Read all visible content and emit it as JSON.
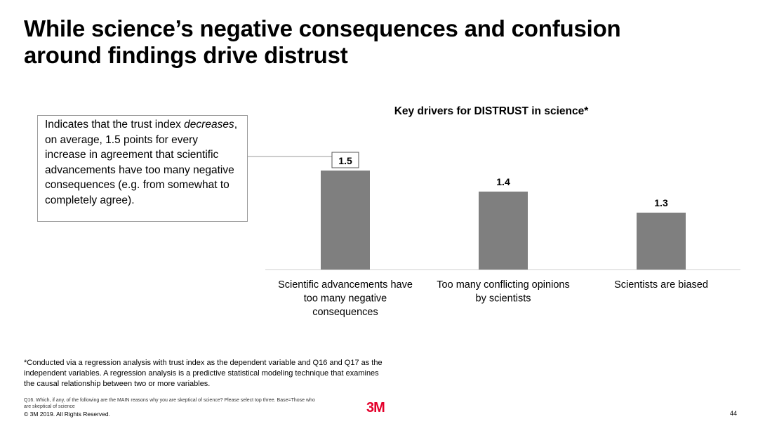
{
  "slide": {
    "title_line1": "While science’s negative consequences and confusion",
    "title_line2": "around findings drive distrust",
    "callout": {
      "before": "Indicates that the trust index ",
      "emphasis": "decreases",
      "after": ", on average, 1.5 points for every increase in agreement that scientific advancements have too many negative consequences (e.g. from somewhat to completely agree)."
    },
    "footnote": "*Conducted via a regression analysis with trust index as the dependent variable  and Q16 and Q17 as the independent variables. A regression analysis is a predictive statistical modeling technique that examines the causal relationship between two or more variables.",
    "question_note": "Q16. Which, if any, of the following are the MAIN reasons why you are skeptical of science? Please select top three. Base=Those who are skeptical of science",
    "copyright": "© 3M 2019.   All Rights Reserved.",
    "logo_text": "3M",
    "page_number": "44"
  },
  "colors": {
    "bar": "#7f7f7f",
    "axis": "#d0d0d0",
    "logo": "#e4002b"
  },
  "chart_data": {
    "type": "bar",
    "title": "Key drivers for DISTRUST in science*",
    "categories": [
      [
        "Scientific advancements have",
        "too many negative",
        "consequences"
      ],
      [
        "Too many conflicting opinions",
        "by scientists"
      ],
      [
        "Scientists are biased"
      ]
    ],
    "values": [
      1.5,
      1.4,
      1.3
    ],
    "value_labels": [
      "1.5",
      "1.4",
      "1.3"
    ],
    "highlighted_index": 0,
    "xlabel": "",
    "ylabel": "",
    "ylim": [
      1.03,
      1.53
    ],
    "grid": false
  }
}
